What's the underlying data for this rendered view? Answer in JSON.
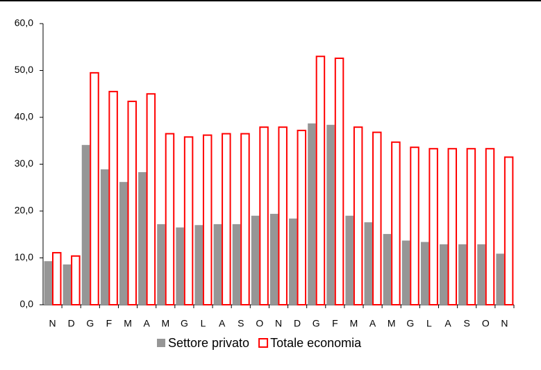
{
  "chart_data": {
    "type": "bar",
    "categories": [
      "N",
      "D",
      "G",
      "F",
      "M",
      "A",
      "M",
      "G",
      "L",
      "A",
      "S",
      "O",
      "N",
      "D",
      "G",
      "F",
      "M",
      "A",
      "M",
      "G",
      "L",
      "A",
      "S",
      "O",
      "N"
    ],
    "series": [
      {
        "name": "Settore privato",
        "color": "#969696",
        "values": [
          9.3,
          8.6,
          34.1,
          28.9,
          26.2,
          28.3,
          17.2,
          16.5,
          17.0,
          17.2,
          17.2,
          19.0,
          19.4,
          18.4,
          38.7,
          38.4,
          19.0,
          17.6,
          15.1,
          13.7,
          13.4,
          12.9,
          12.9,
          12.9,
          10.9
        ]
      },
      {
        "name": "Totale economia",
        "color": "#ff0000",
        "values": [
          11.1,
          10.4,
          49.5,
          45.5,
          43.4,
          45.0,
          36.5,
          35.8,
          36.2,
          36.5,
          36.5,
          37.9,
          37.9,
          37.2,
          53.0,
          52.6,
          37.9,
          36.8,
          34.7,
          33.6,
          33.3,
          33.3,
          33.3,
          33.3,
          31.5
        ]
      }
    ],
    "ylim": [
      0,
      60
    ],
    "yticks": [
      {
        "value": 0,
        "label": "0,0"
      },
      {
        "value": 10,
        "label": "10,0"
      },
      {
        "value": 20,
        "label": "20,0"
      },
      {
        "value": 30,
        "label": "30,0"
      },
      {
        "value": 40,
        "label": "40,0"
      },
      {
        "value": 50,
        "label": "50,0"
      },
      {
        "value": 60,
        "label": "60,0"
      }
    ]
  }
}
